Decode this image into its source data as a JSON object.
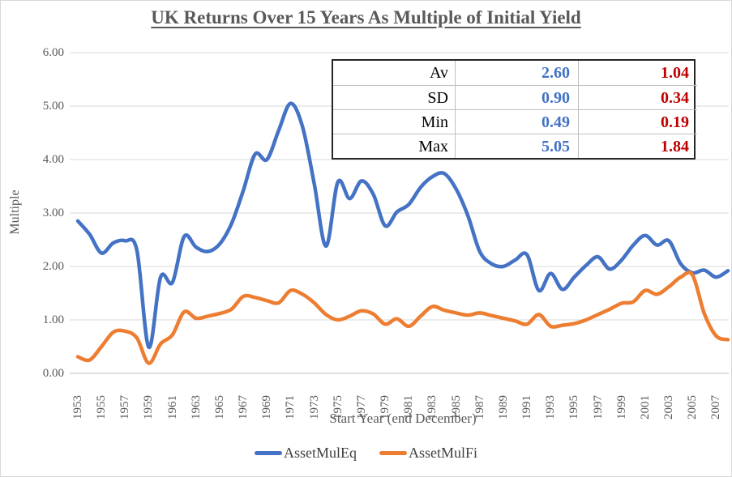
{
  "title": "UK Returns Over 15 Years As Multiple of Initial Yield",
  "colors": {
    "equity": "#4472C4",
    "fixed": "#ED7D31",
    "stat_blue": "#4472C4",
    "stat_red": "#C00000",
    "axis_text": "#595959",
    "gridline": "#D9D9D9",
    "axis_line": "#BFBFBF"
  },
  "stats_table": {
    "rows": [
      {
        "label": "Av",
        "eq": "2.60",
        "fi": "1.04"
      },
      {
        "label": "SD",
        "eq": "0.90",
        "fi": "0.34"
      },
      {
        "label": "Min",
        "eq": "0.49",
        "fi": "0.19"
      },
      {
        "label": "Max",
        "eq": "5.05",
        "fi": "1.84"
      }
    ]
  },
  "y_axis": {
    "title": "Multiple",
    "ticks": [
      "6.00",
      "5.00",
      "4.00",
      "3.00",
      "2.00",
      "1.00",
      "0.00"
    ]
  },
  "x_axis": {
    "title": "Start Year (end December)",
    "ticks": [
      "1953",
      "1955",
      "1957",
      "1959",
      "1961",
      "1963",
      "1965",
      "1967",
      "1969",
      "1971",
      "1973",
      "1975",
      "1977",
      "1979",
      "1981",
      "1983",
      "1985",
      "1987",
      "1989",
      "1991",
      "1993",
      "1995",
      "1997",
      "1999",
      "2001",
      "2003",
      "2005",
      "2007"
    ]
  },
  "legend": [
    {
      "label": "AssetMulEq",
      "color_key": "equity"
    },
    {
      "label": "AssetMulFi",
      "color_key": "fixed"
    }
  ],
  "chart_data": {
    "type": "line",
    "title": "UK Returns Over 15 Years As Multiple of Initial Yield",
    "xlabel": "Start Year (end December)",
    "ylabel": "Multiple",
    "ylim": [
      0,
      6
    ],
    "x_start_year": 1953,
    "x_end_year": 2008,
    "grid": "horizontal",
    "legend_position": "bottom",
    "series": [
      {
        "name": "AssetMulEq",
        "color": "#4472C4",
        "values": [
          2.85,
          2.6,
          2.25,
          2.44,
          2.48,
          2.3,
          0.49,
          1.8,
          1.7,
          2.56,
          2.36,
          2.28,
          2.42,
          2.8,
          3.42,
          4.1,
          4.0,
          4.55,
          5.05,
          4.62,
          3.55,
          2.38,
          3.58,
          3.27,
          3.6,
          3.35,
          2.76,
          3.02,
          3.16,
          3.48,
          3.68,
          3.74,
          3.45,
          2.95,
          2.28,
          2.05,
          2.0,
          2.12,
          2.22,
          1.55,
          1.87,
          1.57,
          1.8,
          2.02,
          2.18,
          1.95,
          2.12,
          2.4,
          2.58,
          2.4,
          2.48,
          2.05,
          1.88,
          1.93,
          1.8,
          1.92
        ]
      },
      {
        "name": "AssetMulFi",
        "color": "#ED7D31",
        "values": [
          0.31,
          0.25,
          0.5,
          0.77,
          0.79,
          0.66,
          0.19,
          0.55,
          0.72,
          1.15,
          1.03,
          1.07,
          1.12,
          1.2,
          1.44,
          1.42,
          1.36,
          1.32,
          1.55,
          1.48,
          1.32,
          1.1,
          1.0,
          1.07,
          1.17,
          1.11,
          0.92,
          1.02,
          0.88,
          1.07,
          1.25,
          1.18,
          1.13,
          1.09,
          1.13,
          1.08,
          1.03,
          0.98,
          0.92,
          1.1,
          0.88,
          0.9,
          0.93,
          1.0,
          1.1,
          1.2,
          1.31,
          1.34,
          1.55,
          1.48,
          1.62,
          1.8,
          1.84,
          1.12,
          0.7,
          0.63
        ]
      }
    ]
  }
}
